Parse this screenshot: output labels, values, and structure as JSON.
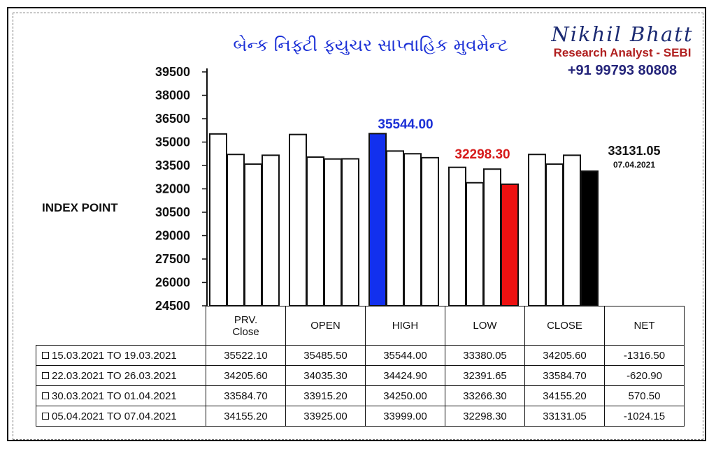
{
  "title": "બેન્ક નિફ્ટી ફ્યુચર સાપ્તાહિક મુવમેન્ટ",
  "brand": {
    "name": "Nikhil Bhatt",
    "role": "Research Analyst - SEBI",
    "phone": "+91 99793 80808"
  },
  "ylabel": "INDEX POINT",
  "chart_data": {
    "type": "bar",
    "categories": [
      "PRV. Close",
      "OPEN",
      "HIGH",
      "LOW",
      "CLOSE"
    ],
    "series": [
      {
        "name": "15.03.2021 TO 19.03.2021",
        "values": [
          35522.1,
          35485.5,
          35544.0,
          33380.05,
          34205.6
        ]
      },
      {
        "name": "22.03.2021 TO 26.03.2021",
        "values": [
          34205.6,
          34035.3,
          34424.9,
          32391.65,
          33584.7
        ]
      },
      {
        "name": "30.03.2021 TO 01.04.2021",
        "values": [
          33584.7,
          33915.2,
          34250.0,
          33266.3,
          34155.2
        ]
      },
      {
        "name": "05.04.2021 TO 07.04.2021",
        "values": [
          34155.2,
          33925.0,
          33999.0,
          32298.3,
          33131.05
        ]
      }
    ],
    "ylim": [
      24500,
      39500
    ],
    "yticks": [
      39500,
      38000,
      36500,
      35000,
      33500,
      32000,
      30500,
      29000,
      27500,
      26000,
      24500
    ],
    "ytick_labels": [
      "39500",
      "38000",
      "36500",
      "35000",
      "33500",
      "32000",
      "30500",
      "29000",
      "27500",
      "26000",
      "24500"
    ],
    "highlight_colors": {
      "high": "#1230ee",
      "low": "#ee1111",
      "close": "#000000",
      "default": "#ffffff"
    },
    "annotations": [
      {
        "text": "35544.00",
        "color": "#1a2fd6"
      },
      {
        "text": "32298.30",
        "color": "#d61a1a"
      },
      {
        "text": "33131.05",
        "color": "#111111"
      },
      {
        "text": "07.04.2021",
        "color": "#111111"
      }
    ]
  },
  "table": {
    "headers": [
      "PRV.\nClose",
      "OPEN",
      "HIGH",
      "LOW",
      "CLOSE",
      "NET"
    ],
    "header_lines": [
      [
        "PRV.",
        "Close"
      ],
      [
        "OPEN"
      ],
      [
        "HIGH"
      ],
      [
        "LOW"
      ],
      [
        "CLOSE"
      ],
      [
        "NET"
      ]
    ],
    "rows": [
      {
        "label": "15.03.2021 TO 19.03.2021",
        "cells": [
          "35522.10",
          "35485.50",
          "35544.00",
          "33380.05",
          "34205.60",
          "-1316.50"
        ]
      },
      {
        "label": "22.03.2021 TO 26.03.2021",
        "cells": [
          "34205.60",
          "34035.30",
          "34424.90",
          "32391.65",
          "33584.70",
          "-620.90"
        ]
      },
      {
        "label": "30.03.2021 TO 01.04.2021",
        "cells": [
          "33584.70",
          "33915.20",
          "34250.00",
          "33266.30",
          "34155.20",
          "570.50"
        ]
      },
      {
        "label": "05.04.2021 TO 07.04.2021",
        "cells": [
          "34155.20",
          "33925.00",
          "33999.00",
          "32298.30",
          "33131.05",
          "-1024.15"
        ]
      }
    ]
  }
}
